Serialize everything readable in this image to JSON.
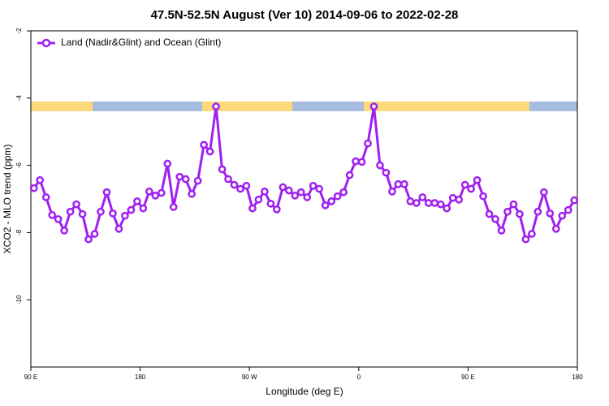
{
  "chart_data": {
    "type": "line",
    "title": "47.5N-52.5N August (Ver 10)   2014-09-06 to 2022-02-28",
    "xlabel": "Longitude (deg E)",
    "ylabel": "XCO2 - MLO trend (ppm)",
    "xlim": [
      90,
      540
    ],
    "xticks": [
      {
        "value": 90,
        "label": "90 E"
      },
      180,
      {
        "value": 270,
        "label": "90 W"
      },
      {
        "value": 360,
        "label": "0"
      },
      {
        "value": 450,
        "label": "90 E"
      },
      {
        "value": 540,
        "label": "180"
      }
    ],
    "ylim": [
      -12,
      -2
    ],
    "yticks": [
      -2,
      -4,
      -6,
      -8,
      -10
    ],
    "legend": "top-left",
    "series": [
      {
        "name": "Land (Nadir&Glint) and Ocean (Glint)",
        "color": "#a020f0",
        "x": [
          92.5,
          97.5,
          102.5,
          107.5,
          112.5,
          117.5,
          122.5,
          127.5,
          132.5,
          137.5,
          142.5,
          147.5,
          152.5,
          157.5,
          162.5,
          167.5,
          172.5,
          177.5,
          182.5,
          187.5,
          192.5,
          197.5,
          202.5,
          207.5,
          212.5,
          217.5,
          222.5,
          227.5,
          232.5,
          237.5,
          242.5,
          247.5,
          252.5,
          257.5,
          262.5,
          267.5,
          272.5,
          277.5,
          282.5,
          287.5,
          292.5,
          297.5,
          302.5,
          307.5,
          312.5,
          317.5,
          322.5,
          327.5,
          332.5,
          337.5,
          342.5,
          347.5,
          352.5,
          357.5,
          362.5,
          367.5,
          372.5,
          377.5,
          382.5,
          387.5,
          392.5,
          397.5,
          402.5,
          407.5,
          412.5,
          417.5,
          422.5,
          427.5,
          432.5,
          437.5,
          442.5,
          447.5,
          452.5,
          457.5,
          462.5,
          467.5,
          472.5,
          477.5,
          482.5,
          487.5,
          492.5,
          497.5,
          502.5,
          507.5,
          512.5,
          517.5,
          522.5,
          527.5,
          532.5,
          537.5
        ],
        "values": [
          -6.68,
          -6.44,
          -6.95,
          -7.48,
          -7.6,
          -7.94,
          -7.38,
          -7.16,
          -7.45,
          -8.2,
          -8.04,
          -7.38,
          -6.8,
          -7.43,
          -7.89,
          -7.5,
          -7.33,
          -7.07,
          -7.28,
          -6.78,
          -6.9,
          -6.82,
          -5.95,
          -7.24,
          -6.34,
          -6.41,
          -6.85,
          -6.46,
          -5.39,
          -5.59,
          -4.25,
          -6.12,
          -6.41,
          -6.58,
          -6.7,
          -6.61,
          -7.28,
          -7.02,
          -6.78,
          -7.14,
          -7.31,
          -6.65,
          -6.75,
          -6.9,
          -6.8,
          -6.95,
          -6.61,
          -6.7,
          -7.19,
          -7.07,
          -6.92,
          -6.8,
          -6.29,
          -5.88,
          -5.9,
          -5.35,
          -4.25,
          -6.0,
          -6.22,
          -6.78,
          -6.56,
          -6.56,
          -7.07,
          -7.12,
          -6.95,
          -7.12,
          -7.12,
          -7.16,
          -7.28,
          -6.97,
          -7.02,
          -6.58,
          -6.7,
          -6.44,
          -6.92,
          -7.45,
          -7.6,
          -7.94,
          -7.38,
          -7.16,
          -7.45,
          -8.2,
          -8.04,
          -7.38,
          -6.8,
          -7.43,
          -7.89,
          -7.5,
          -7.33,
          -7.04
        ]
      }
    ]
  }
}
